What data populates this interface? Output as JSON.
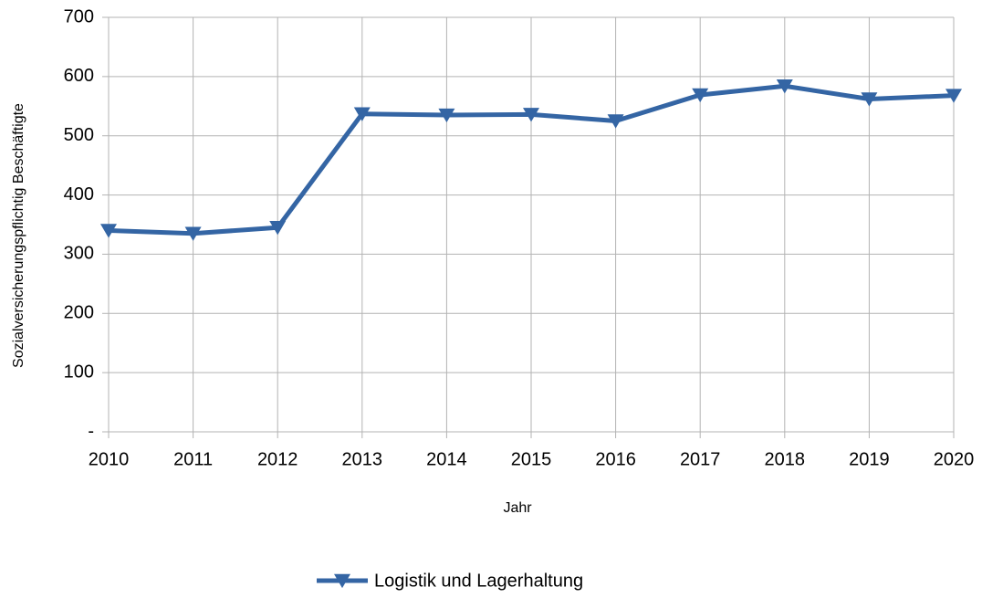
{
  "chart_data": {
    "type": "line",
    "x_label": "Jahr",
    "y_label": "Sozialversicherungspflichtig Beschäftigte",
    "x": [
      2010,
      2011,
      2012,
      2013,
      2014,
      2015,
      2016,
      2017,
      2018,
      2019,
      2020
    ],
    "series": [
      {
        "name": "Logistik und Lagerhaltung",
        "color": "#3465a4",
        "values": [
          340,
          335,
          345,
          537,
          535,
          536,
          525,
          569,
          584,
          562,
          568
        ]
      }
    ],
    "xlim": [
      2010,
      2020
    ],
    "xticks": [
      2010,
      2011,
      2012,
      2013,
      2014,
      2015,
      2016,
      2017,
      2018,
      2019,
      2020
    ],
    "ylim": [
      0,
      700
    ],
    "yticks": [
      {
        "value": 0,
        "label": "-"
      },
      100,
      200,
      300,
      400,
      500,
      600,
      700
    ],
    "grid": true,
    "legend": "bottom"
  }
}
